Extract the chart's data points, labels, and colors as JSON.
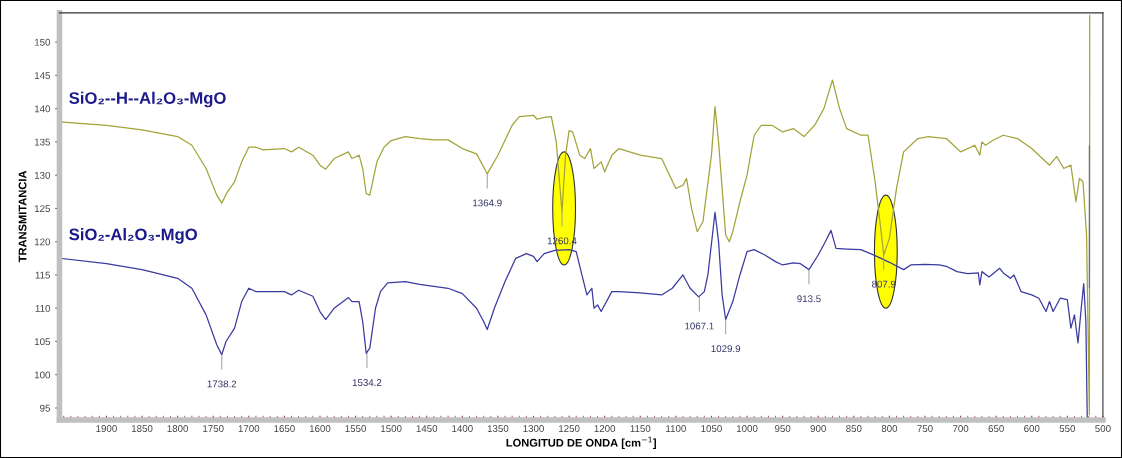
{
  "chart_data": {
    "type": "line",
    "xlabel": "LONGITUD DE ONDA [cm$^{−1}$]",
    "ylabel": "TRANSMITANCIA",
    "xlim": [
      1966,
      500
    ],
    "ylim": [
      93.2,
      154.4
    ],
    "xticks": [
      1900,
      1850,
      1800,
      1750,
      1700,
      1650,
      1600,
      1550,
      1500,
      1450,
      1400,
      1350,
      1300,
      1250,
      1200,
      1150,
      1100,
      1050,
      1000,
      950,
      900,
      850,
      800,
      750,
      700,
      650,
      600,
      550,
      500
    ],
    "yticks": [
      95,
      100,
      105,
      110,
      115,
      120,
      125,
      130,
      135,
      140,
      145,
      150
    ],
    "grid": false,
    "legend": false,
    "marker": "none",
    "line_style": "solid",
    "series": [
      {
        "name": "SiO₂--H--Al₂O₃-MgO",
        "color": "#a3a33a",
        "x": [
          1965,
          1900,
          1850,
          1800,
          1780,
          1760,
          1745,
          1738,
          1730,
          1720,
          1710,
          1700,
          1690,
          1680,
          1650,
          1640,
          1630,
          1610,
          1600,
          1592,
          1580,
          1560,
          1555,
          1545,
          1540,
          1535,
          1530,
          1520,
          1510,
          1500,
          1480,
          1460,
          1440,
          1420,
          1400,
          1380,
          1365,
          1350,
          1330,
          1320,
          1300,
          1295,
          1285,
          1275,
          1268,
          1262,
          1260,
          1255,
          1250,
          1245,
          1235,
          1228,
          1220,
          1215,
          1205,
          1200,
          1190,
          1180,
          1150,
          1120,
          1100,
          1090,
          1085,
          1078,
          1070,
          1062,
          1050,
          1045,
          1040,
          1030,
          1025,
          1020,
          1010,
          1000,
          990,
          980,
          965,
          950,
          935,
          920,
          905,
          892,
          880,
          870,
          860,
          840,
          830,
          820,
          810,
          808,
          800,
          790,
          780,
          760,
          745,
          720,
          705,
          700,
          680,
          673,
          670,
          665,
          655,
          640,
          620,
          600,
          590,
          575,
          565,
          555,
          545,
          538,
          533,
          528,
          523,
          519,
          518.5
        ],
        "values": [
          138,
          137.5,
          136.8,
          135.8,
          134.5,
          131,
          127,
          125.8,
          127.5,
          129,
          132,
          134.2,
          134.2,
          133.8,
          134,
          133.5,
          134.2,
          133,
          131.5,
          130.9,
          132.5,
          133.5,
          132.5,
          133,
          131,
          127.2,
          127,
          132,
          134.2,
          135.2,
          135.8,
          135.5,
          135.3,
          135.3,
          134,
          133.2,
          130.2,
          133,
          137.5,
          138.8,
          139,
          138.4,
          138.7,
          138.8,
          135,
          127,
          124.5,
          133,
          136.7,
          136.5,
          133,
          132.5,
          134,
          131,
          132,
          130.5,
          133,
          134,
          133,
          132.5,
          128,
          128.5,
          129.5,
          125,
          121.5,
          123,
          133,
          140.3,
          135,
          121,
          120,
          121.5,
          126,
          130,
          136,
          137.5,
          137.5,
          136.5,
          137,
          135.8,
          137.5,
          140,
          144.3,
          140,
          137,
          136,
          136,
          129,
          120,
          118,
          120.5,
          128,
          133.5,
          135.5,
          135.8,
          135.5,
          134,
          133.5,
          134.5,
          133,
          135,
          134.5,
          135.2,
          136,
          135.5,
          134,
          133,
          131.5,
          132.8,
          131,
          131.5,
          126,
          129.5,
          129,
          121,
          94,
          154
        ]
      },
      {
        "name": "SiO₂-Al₂O₃-MgO",
        "color": "#3a3aa0",
        "x": [
          1965,
          1900,
          1850,
          1800,
          1780,
          1760,
          1745,
          1738,
          1732,
          1720,
          1710,
          1700,
          1690,
          1650,
          1640,
          1630,
          1610,
          1600,
          1592,
          1580,
          1560,
          1555,
          1545,
          1540,
          1535,
          1530,
          1522,
          1515,
          1505,
          1480,
          1460,
          1440,
          1420,
          1400,
          1380,
          1370,
          1365,
          1355,
          1340,
          1325,
          1310,
          1300,
          1295,
          1285,
          1270,
          1250,
          1240,
          1232,
          1225,
          1218,
          1215,
          1210,
          1205,
          1190,
          1180,
          1150,
          1120,
          1105,
          1090,
          1080,
          1068,
          1060,
          1055,
          1045,
          1040,
          1035,
          1030,
          1020,
          1010,
          1000,
          990,
          975,
          960,
          950,
          935,
          925,
          913,
          900,
          890,
          882,
          875,
          860,
          840,
          820,
          800,
          780,
          770,
          750,
          730,
          720,
          705,
          690,
          675,
          673,
          670,
          660,
          645,
          640,
          630,
          625,
          615,
          600,
          590,
          580,
          575,
          570,
          560,
          550,
          545,
          540,
          535,
          530,
          527,
          524,
          522
        ],
        "values": [
          117.5,
          116.7,
          115.8,
          114.5,
          113,
          109,
          104.5,
          103,
          105,
          107,
          111,
          113,
          112.5,
          112.5,
          112,
          112.7,
          111.8,
          109.5,
          108.3,
          110,
          111.6,
          111,
          111,
          108,
          103.2,
          104,
          110,
          112.5,
          113.8,
          114,
          113.6,
          113.3,
          113,
          112.2,
          110,
          108,
          106.8,
          110,
          114,
          117.5,
          118.2,
          117.8,
          117,
          118.2,
          118.7,
          118.8,
          118.5,
          115,
          112,
          113,
          110,
          110.5,
          109.5,
          112.5,
          112.5,
          112.3,
          112,
          113,
          115,
          113,
          111.7,
          112.5,
          115,
          124.4,
          120,
          112,
          108.3,
          111,
          115,
          118.5,
          118.8,
          118,
          117,
          116.5,
          116.8,
          116.7,
          115.8,
          118,
          120,
          121.7,
          119,
          118.9,
          118.8,
          117.9,
          116.9,
          115.8,
          116.5,
          116.6,
          116.5,
          116.3,
          115.5,
          115.2,
          115.3,
          113.5,
          115.5,
          114.7,
          116,
          115.3,
          114.5,
          115,
          112.5,
          112,
          111.5,
          109.5,
          111,
          109.5,
          111.5,
          111.3,
          107,
          109,
          104.8,
          110.5,
          113.7,
          108,
          93.5
        ]
      },
      {
        "color": "#6a6a9a",
        "x": [
          519,
          519
        ],
        "values": [
          134.4,
          113.1
        ]
      }
    ],
    "annotations": [
      {
        "text": "1738.2",
        "x": 1738,
        "y": 103
      },
      {
        "text": "1534.2",
        "x": 1534,
        "y": 103.2
      },
      {
        "text": "1364.9",
        "x": 1365,
        "y": 130.2
      },
      {
        "text": "1260.4",
        "x": 1260,
        "y": 124.5
      },
      {
        "text": "1067.1",
        "x": 1067,
        "y": 111.7
      },
      {
        "text": "1029.9",
        "x": 1030,
        "y": 108.3
      },
      {
        "text": "913.5",
        "x": 913,
        "y": 115.8
      },
      {
        "text": "807.9",
        "x": 808,
        "y": 118
      }
    ]
  }
}
